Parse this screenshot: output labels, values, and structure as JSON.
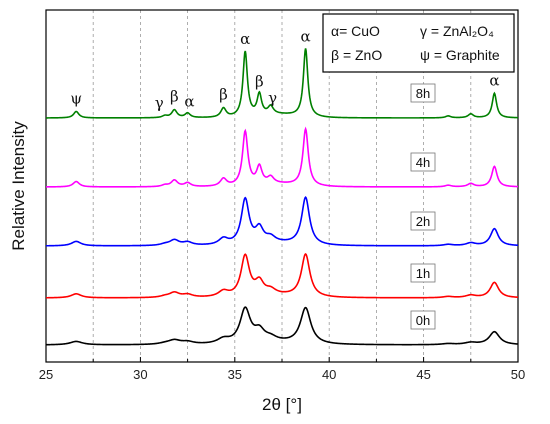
{
  "chart_data": {
    "type": "line",
    "xlabel": "2θ [°]",
    "ylabel": "Relative Intensity",
    "xlim": [
      25,
      50
    ],
    "xticks": [
      "25",
      "30",
      "35",
      "40",
      "45",
      "50"
    ],
    "grid": "dashed vertical lines every 2.5",
    "legend_placement": "top-right",
    "legend": [
      {
        "text": "α= CuO",
        "col": 0,
        "row": 0
      },
      {
        "text": "γ = ZnAl₂O₄",
        "col": 1,
        "row": 0
      },
      {
        "text": "β = ZnO",
        "col": 0,
        "row": 1
      },
      {
        "text": "ψ = Graphite",
        "col": 1,
        "row": 1
      }
    ],
    "peaks": [
      {
        "pos": 26.6,
        "h": 0.1
      },
      {
        "pos": 31.3,
        "h": 0.03
      },
      {
        "pos": 31.8,
        "h": 0.12
      },
      {
        "pos": 32.5,
        "h": 0.07
      },
      {
        "pos": 34.4,
        "h": 0.14
      },
      {
        "pos": 35.55,
        "h": 1.0
      },
      {
        "pos": 36.3,
        "h": 0.32
      },
      {
        "pos": 36.9,
        "h": 0.12
      },
      {
        "pos": 38.75,
        "h": 1.05
      },
      {
        "pos": 46.3,
        "h": 0.03
      },
      {
        "pos": 47.5,
        "h": 0.06
      },
      {
        "pos": 48.75,
        "h": 0.38
      }
    ],
    "series": [
      {
        "name": "0h",
        "color": "#000000",
        "peak_width": 0.33,
        "intensity_scale": 0.38
      },
      {
        "name": "1h",
        "color": "#ff0000",
        "peak_width": 0.27,
        "intensity_scale": 0.45
      },
      {
        "name": "2h",
        "color": "#0000ff",
        "peak_width": 0.25,
        "intensity_scale": 0.5
      },
      {
        "name": "4h",
        "color": "#ff00ff",
        "peak_width": 0.17,
        "intensity_scale": 0.6
      },
      {
        "name": "8h",
        "color": "#008000",
        "peak_width": 0.14,
        "intensity_scale": 0.72
      }
    ],
    "phase_labels": [
      {
        "symbol": "ψ",
        "pos": 26.6
      },
      {
        "symbol": "γ",
        "pos": 31.0
      },
      {
        "symbol": "β",
        "pos": 31.8
      },
      {
        "symbol": "α",
        "pos": 32.6
      },
      {
        "symbol": "β",
        "pos": 34.4
      },
      {
        "symbol": "α",
        "pos": 35.55
      },
      {
        "symbol": "β",
        "pos": 36.3
      },
      {
        "symbol": "γ",
        "pos": 37.0
      },
      {
        "symbol": "α",
        "pos": 38.75
      },
      {
        "symbol": "α",
        "pos": 48.75
      }
    ]
  }
}
